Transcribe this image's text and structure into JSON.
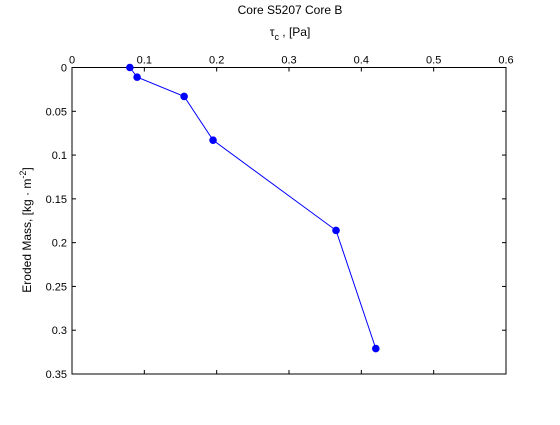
{
  "chart_data": {
    "type": "line",
    "title": "Core S5207 Core B",
    "xlabel_symbol": "τ",
    "xlabel_sub": "c",
    "xlabel_rest": " , [Pa]",
    "ylabel": "Eroded Mass, [kg · m",
    "ylabel_sup": "-2",
    "ylabel_end": "]",
    "xlim": [
      0,
      0.6
    ],
    "ylim": [
      0,
      0.35
    ],
    "y_reversed": true,
    "x_axis_position": "top",
    "grid": false,
    "x_ticks": [
      0,
      0.1,
      0.2,
      0.3,
      0.4,
      0.5,
      0.6
    ],
    "x_tick_labels": [
      "0",
      "0.1",
      "0.2",
      "0.3",
      "0.4",
      "0.5",
      "0.6"
    ],
    "y_ticks": [
      0,
      0.05,
      0.1,
      0.15,
      0.2,
      0.25,
      0.3,
      0.35
    ],
    "y_tick_labels": [
      "0",
      "0.05",
      "0.1",
      "0.15",
      "0.2",
      "0.25",
      "0.3",
      "0.35"
    ],
    "series": [
      {
        "color": "#0000ff",
        "marker": "circle",
        "x": [
          0.08,
          0.09,
          0.155,
          0.195,
          0.365,
          0.42
        ],
        "y": [
          0.0,
          0.011,
          0.033,
          0.083,
          0.186,
          0.321
        ]
      }
    ]
  }
}
